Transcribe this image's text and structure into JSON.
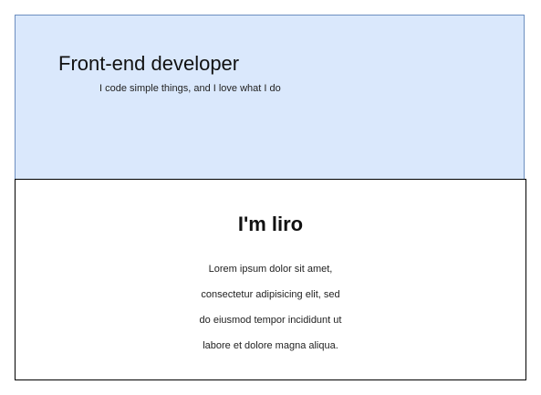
{
  "hero": {
    "title": "Front-end developer",
    "subtitle": "I code simple things, and I love what I do"
  },
  "about": {
    "heading": "I'm liro",
    "lines": [
      "Lorem ipsum dolor sit amet,",
      "consectetur adipisicing elit, sed",
      "do eiusmod tempor incididunt ut",
      "labore et dolore magna aliqua."
    ]
  },
  "colors": {
    "hero_background": "#dae8fc",
    "hero_border": "#6c8ebf",
    "section_border": "#000000"
  }
}
